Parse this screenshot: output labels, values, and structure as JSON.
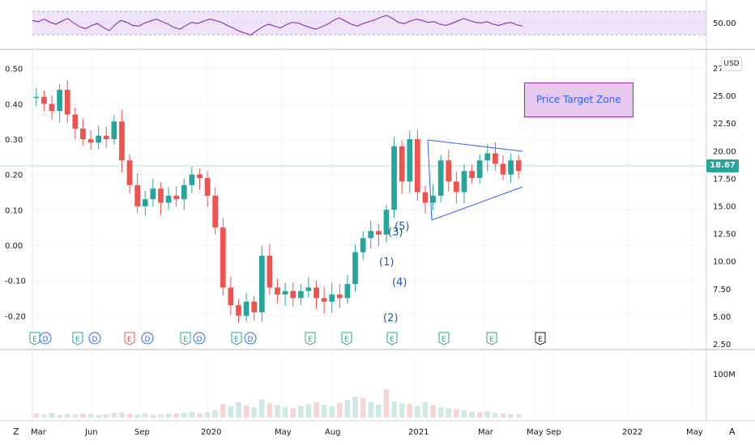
{
  "app": {
    "currency_label": "USD",
    "last_price_label": "18.67",
    "corner_left": "Z",
    "corner_right": "A"
  },
  "colors": {
    "up": "#26a69a",
    "down": "#ef5350",
    "rsi_line": "#7b1fa2",
    "rsi_band": "#e9d9f5",
    "ratio_line": "#b2dfdb",
    "trendline": "#2962ff",
    "wave_label": "#1e5aa8",
    "event_earn_green": "#26a69a",
    "event_earn_red": "#ef5350",
    "event_div_blue": "#2962ff",
    "event_future": "#131722"
  },
  "annotation": {
    "label": "Price Target Zone"
  },
  "rsi": {
    "axis_label": "50.00"
  },
  "main_left_axis": {
    "ticks": [
      "0.50",
      "0.40",
      "0.30",
      "0.20",
      "0.10",
      "0.00",
      "-0.10",
      "-0.20"
    ]
  },
  "main_right_axis": {
    "ticks": [
      "27",
      "25.00",
      "22.50",
      "20.00",
      "17.50",
      "15.00",
      "12.50",
      "10.00",
      "7.50",
      "5.00",
      "2.50"
    ]
  },
  "volume": {
    "axis_label": "100M"
  },
  "time_axis": {
    "labels": [
      "Mar",
      "Jun",
      "Sep",
      "2020",
      "May",
      "Aug",
      "2021",
      "Mar",
      "May",
      "Sep",
      "2022",
      "May"
    ]
  },
  "waves": {
    "labels": [
      "(1)",
      "(2)",
      "(3)",
      "(4)",
      "(5)"
    ]
  },
  "events": {
    "markers": [
      "E",
      "D",
      "E",
      "D",
      "E",
      "D",
      "E",
      "D",
      "E",
      "D",
      "E",
      "E",
      "E",
      "E",
      "E",
      "E"
    ]
  },
  "chart_data": [
    {
      "type": "line",
      "title": "",
      "series": [
        {
          "values": [
            58,
            56,
            60,
            55,
            52,
            57,
            61,
            54,
            48,
            45,
            50,
            53,
            47,
            42,
            51,
            58,
            55,
            50,
            49,
            54,
            57,
            60,
            56,
            52,
            47,
            44,
            50,
            55,
            53,
            57,
            60,
            58,
            55,
            50,
            46,
            41,
            38,
            35,
            42,
            48,
            52,
            49,
            46,
            51,
            55,
            54,
            50,
            47,
            44,
            48,
            52,
            58,
            62,
            57,
            52,
            49,
            53,
            56,
            59,
            63,
            66,
            61,
            55,
            53,
            57,
            60,
            58,
            55,
            56,
            52,
            50,
            53,
            57,
            61,
            58,
            55,
            54,
            56,
            52,
            50,
            53,
            55,
            51,
            49
          ]
        }
      ],
      "ylim": [
        20,
        80
      ],
      "yticks": [
        50
      ]
    },
    {
      "type": "line",
      "title": "",
      "series": [
        {
          "values": [
            0.42,
            0.4,
            0.38,
            0.44,
            0.37,
            0.33,
            0.3,
            0.29,
            0.31,
            0.3,
            0.35,
            0.24,
            0.17,
            0.11,
            0.13,
            0.16,
            0.12,
            0.14,
            0.13,
            0.17,
            0.2,
            0.19,
            0.14,
            0.05,
            -0.12,
            -0.17,
            -0.2,
            -0.16,
            -0.19,
            -0.03,
            -0.12,
            -0.14,
            -0.13,
            -0.15,
            -0.13,
            -0.12,
            -0.15,
            -0.16,
            -0.14,
            -0.15,
            -0.11,
            -0.02,
            0.02,
            0.04,
            0.03,
            0.1,
            0.28,
            0.18,
            0.3,
            0.15,
            0.12,
            0.14,
            0.24,
            0.18,
            0.15,
            0.21,
            0.19,
            0.24,
            0.26,
            0.23,
            0.2,
            0.24,
            0.21
          ]
        }
      ],
      "ylim": [
        -0.22,
        0.52
      ],
      "yticks": [
        0.5,
        0.4,
        0.3,
        0.2,
        0.1,
        0.0,
        -0.1,
        -0.2
      ]
    },
    {
      "type": "bar",
      "title": "",
      "series": [
        {
          "values": [
            8,
            6,
            9,
            5,
            7,
            6,
            8,
            7,
            5,
            6,
            9,
            10,
            7,
            6,
            8,
            5,
            6,
            7,
            8,
            9,
            11,
            8,
            10,
            14,
            26,
            22,
            30,
            24,
            20,
            35,
            28,
            24,
            20,
            18,
            22,
            26,
            30,
            25,
            22,
            28,
            34,
            40,
            38,
            30,
            25,
            55,
            32,
            28,
            26,
            22,
            30,
            24,
            20,
            18,
            16,
            14,
            12,
            10,
            12,
            9,
            8,
            7,
            6
          ]
        }
      ],
      "ylim": [
        0,
        120
      ],
      "yticks": [
        100
      ]
    }
  ]
}
